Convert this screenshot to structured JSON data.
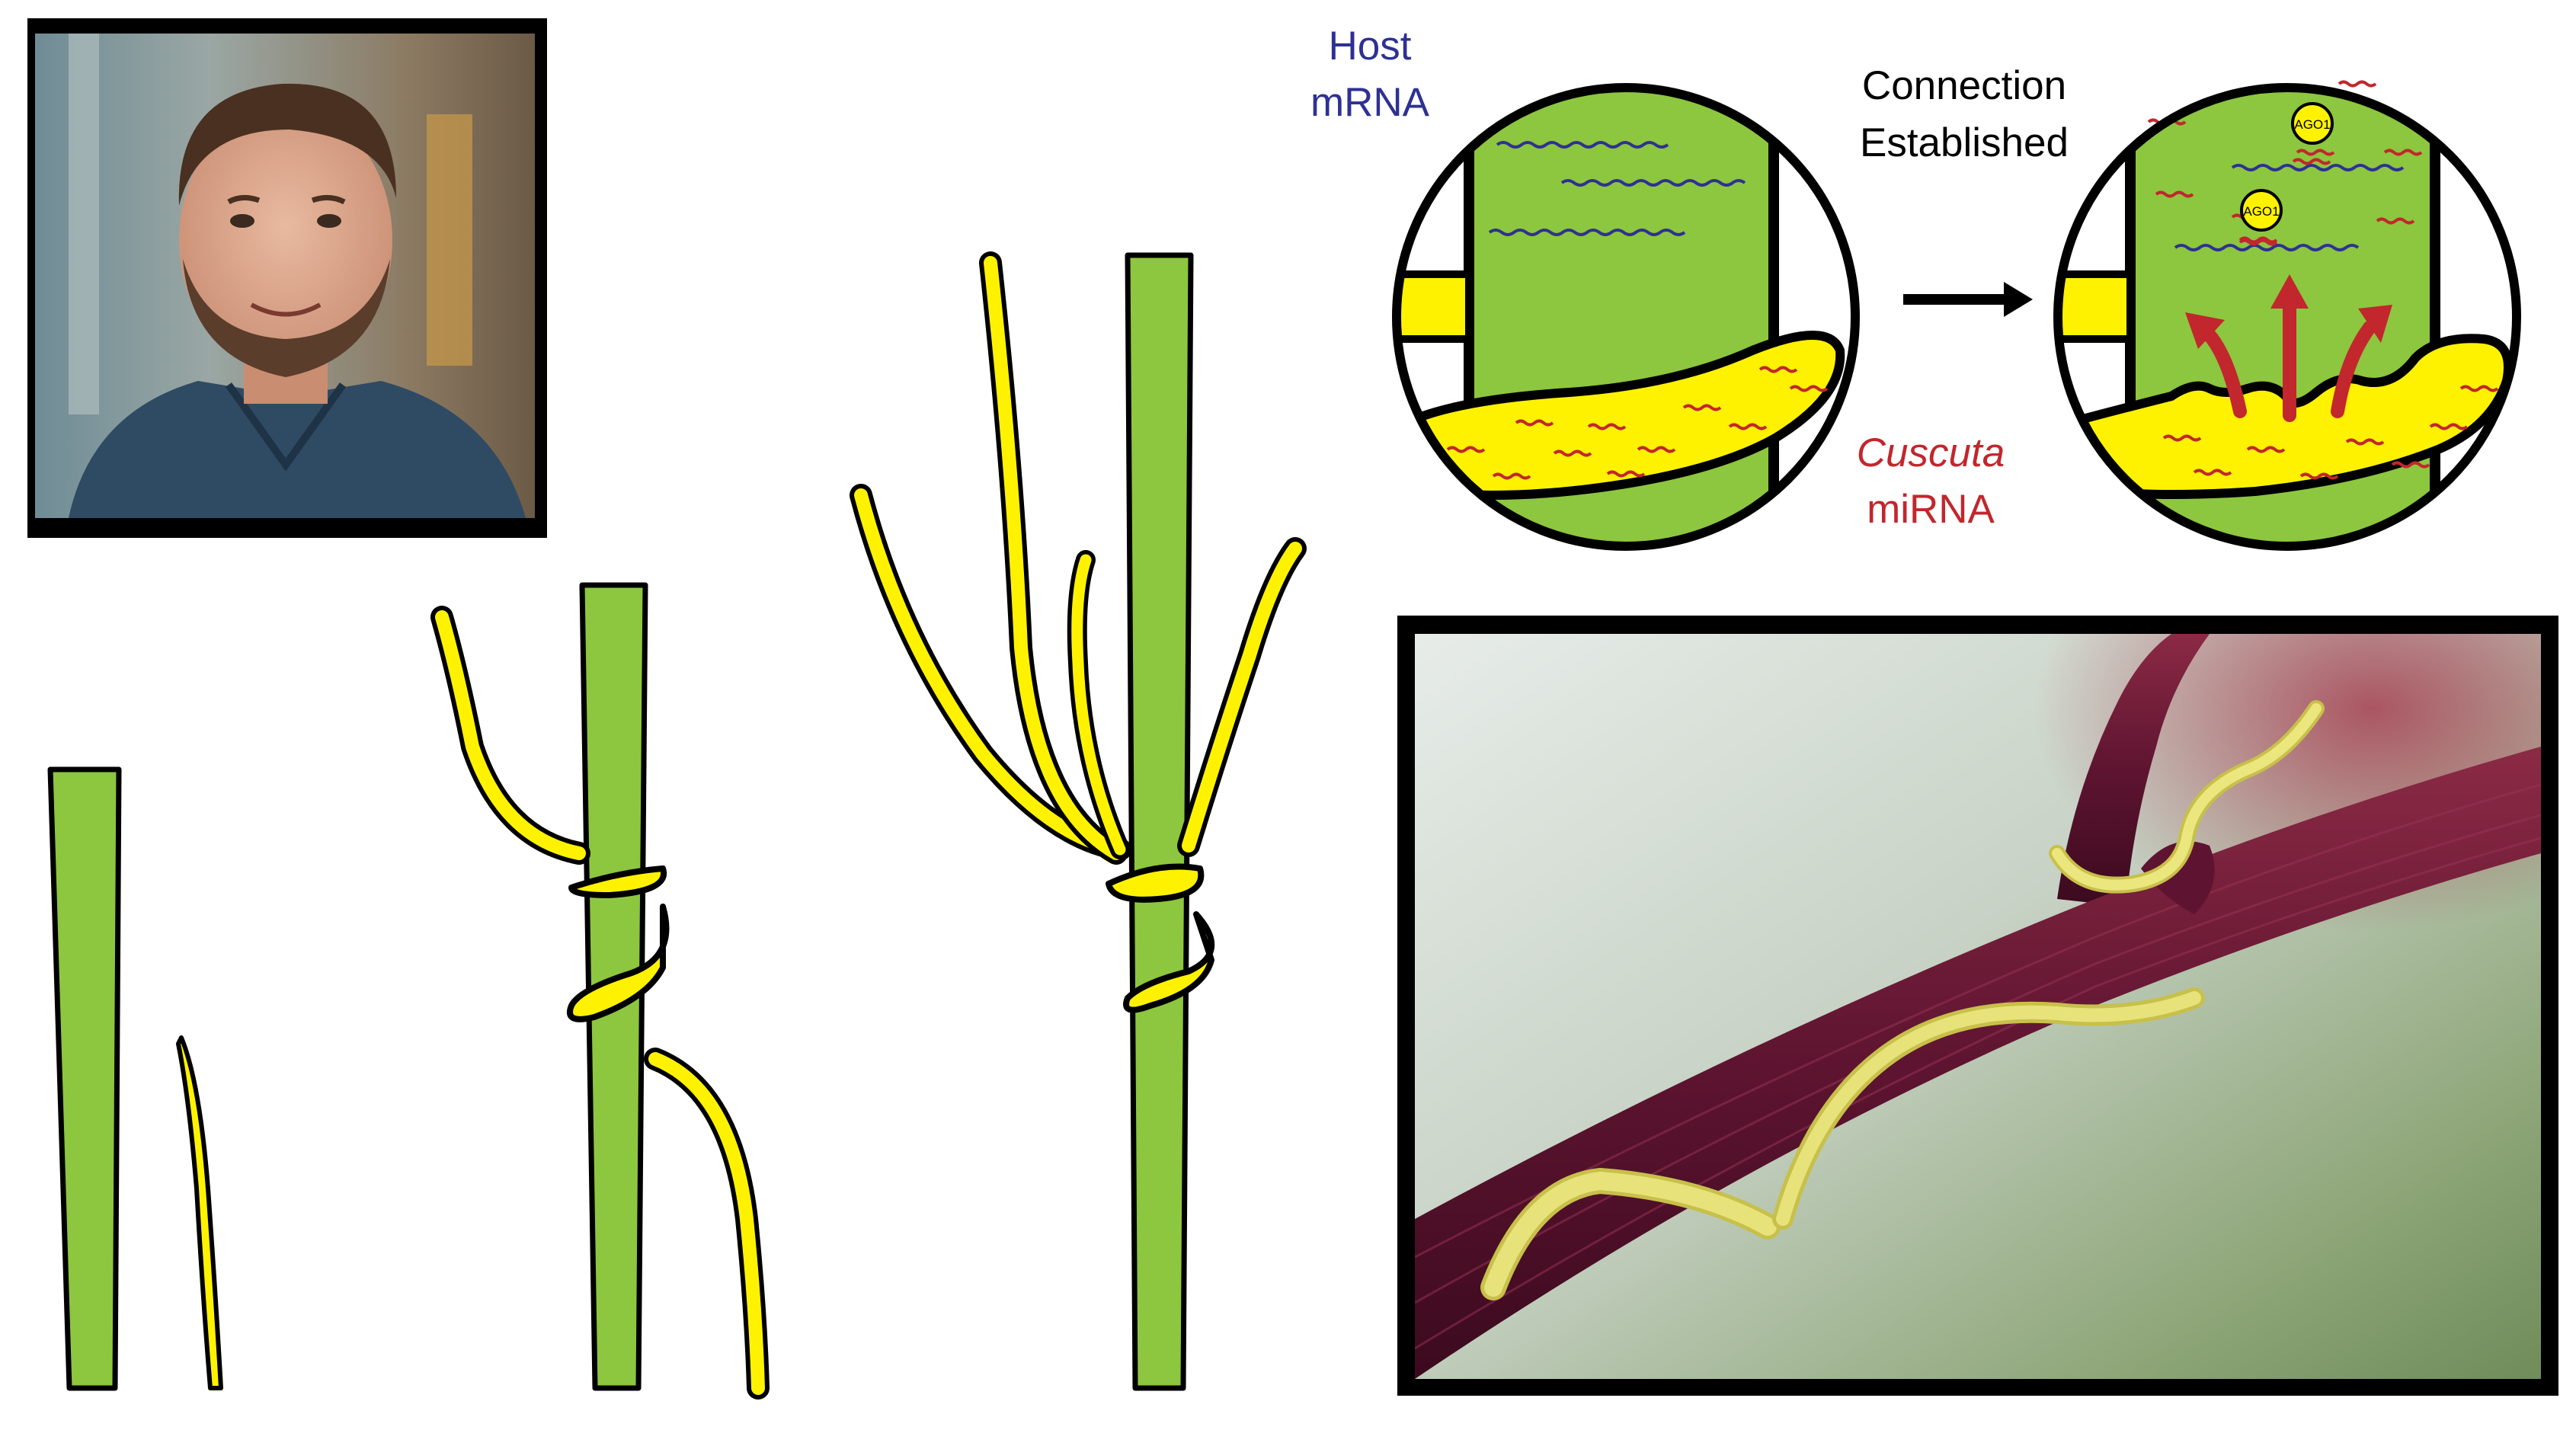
{
  "labels": {
    "host_line1": "Host",
    "host_line2": "mRNA",
    "connection_line1": "Connection",
    "connection_line2": "Established",
    "cuscuta_line1": "Cuscuta",
    "cuscuta_line2": "miRNA",
    "ago_a": "AGO1",
    "ago_b": "AGO1"
  },
  "colors": {
    "stem_green": "#8dc63f",
    "parasite_yellow": "#fff200",
    "host_mrna_blue": "#2e3192",
    "mirna_red": "#c1272d",
    "outline": "#000000"
  },
  "photos": {
    "portrait": "portrait-photo",
    "macro": "cuscuta-vine-on-stem-photo"
  }
}
